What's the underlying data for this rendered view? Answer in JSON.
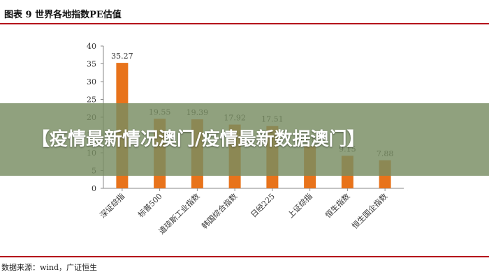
{
  "figure": {
    "title": "图表 9  世界各地指数PE估值",
    "source": "数据来源：wind，广证恒生"
  },
  "banner": {
    "text": "【疫情最新情况澳门/疫情最新数据澳门】"
  },
  "colors": {
    "bar": "#e8731b",
    "axis": "#888888",
    "rule": "#b5121b"
  },
  "chart_data": {
    "type": "bar",
    "title": "",
    "xlabel": "",
    "ylabel": "",
    "ylim": [
      0,
      40
    ],
    "yticks": [
      0,
      5,
      10,
      15,
      20,
      25,
      30,
      35,
      40
    ],
    "grid": false,
    "categories": [
      "深证综指",
      "标普500",
      "道琼斯工业指数",
      "韩国综合指数",
      "日经225",
      "上证综指",
      "恒生指数",
      "恒生国企指数"
    ],
    "values": [
      35.27,
      19.55,
      19.39,
      17.92,
      17.51,
      11.87,
      9.15,
      7.88
    ],
    "value_labels": [
      "35.27",
      "19.55",
      "19.39",
      "17.92",
      "17.51",
      "11.87",
      "9.15",
      "7.88"
    ]
  }
}
